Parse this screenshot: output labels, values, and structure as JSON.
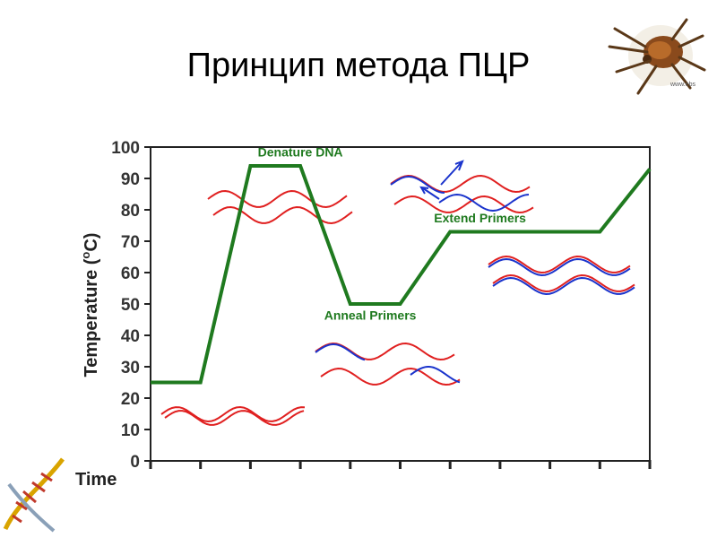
{
  "slide": {
    "title": "Принцип метода ПЦР",
    "corner_image_icon": "tick-insect-icon",
    "corner_logo_icon": "dna-helix-icon"
  },
  "chart_data": {
    "type": "line",
    "title": "",
    "xlabel": "Time",
    "ylabel_main": "Temperature (",
    "ylabel_sup": "o",
    "ylabel_end": "C)",
    "ylim": [
      0,
      100
    ],
    "yticks": [
      0,
      10,
      20,
      30,
      40,
      50,
      60,
      70,
      80,
      90,
      100
    ],
    "xlim": [
      0,
      10
    ],
    "xticks": [
      0,
      1,
      2,
      3,
      4,
      5,
      6,
      7,
      8,
      9,
      10
    ],
    "grid": false,
    "line_color": "#1f7a1f",
    "series": [
      {
        "x": [
          0,
          1,
          2,
          3,
          4,
          5,
          6,
          7,
          8,
          9,
          10
        ],
        "y": [
          25,
          25,
          94,
          94,
          50,
          50,
          73,
          73,
          73,
          73,
          93
        ]
      }
    ],
    "annotations": [
      {
        "text": "Denature DNA",
        "x": 3.0,
        "y": 97,
        "color": "#1f7a1f"
      },
      {
        "text": "Anneal Primers",
        "x": 4.4,
        "y": 45,
        "color": "#1f7a1f"
      },
      {
        "text": "Extend Primers",
        "x": 6.6,
        "y": 76,
        "color": "#1f7a1f"
      }
    ],
    "strand_colors": {
      "template": "#e02020",
      "primer": "#1a33cc"
    }
  }
}
